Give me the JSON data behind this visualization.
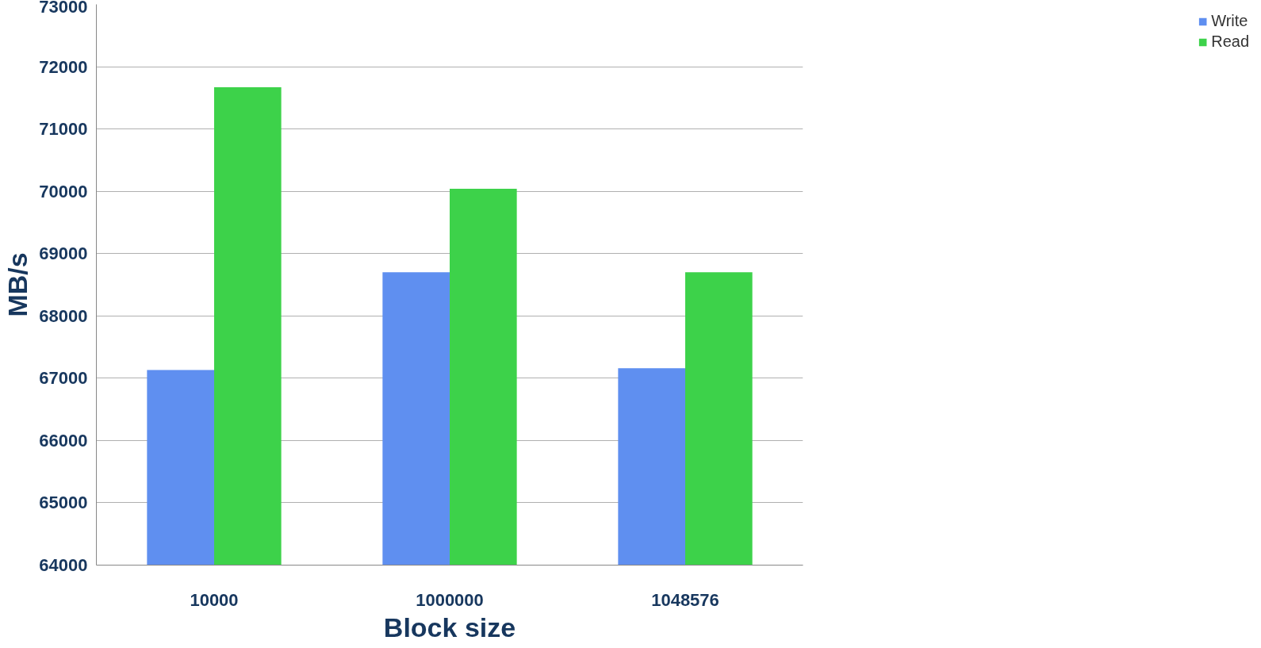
{
  "chart_data": {
    "type": "bar",
    "xlabel": "Block size",
    "ylabel": "MB/s",
    "categories": [
      "10000",
      "1000000",
      "1048576"
    ],
    "series": [
      {
        "name": "Write",
        "color": "#5f8ff0",
        "values": [
          67130,
          68700,
          67160
        ]
      },
      {
        "name": "Read",
        "color": "#3dd24a",
        "values": [
          71670,
          70040,
          68700
        ]
      }
    ],
    "ylim": [
      64000,
      73000
    ],
    "yticks": [
      64000,
      65000,
      66000,
      67000,
      68000,
      69000,
      70000,
      71000,
      72000,
      73000
    ],
    "grid": "y",
    "legend": "right"
  }
}
